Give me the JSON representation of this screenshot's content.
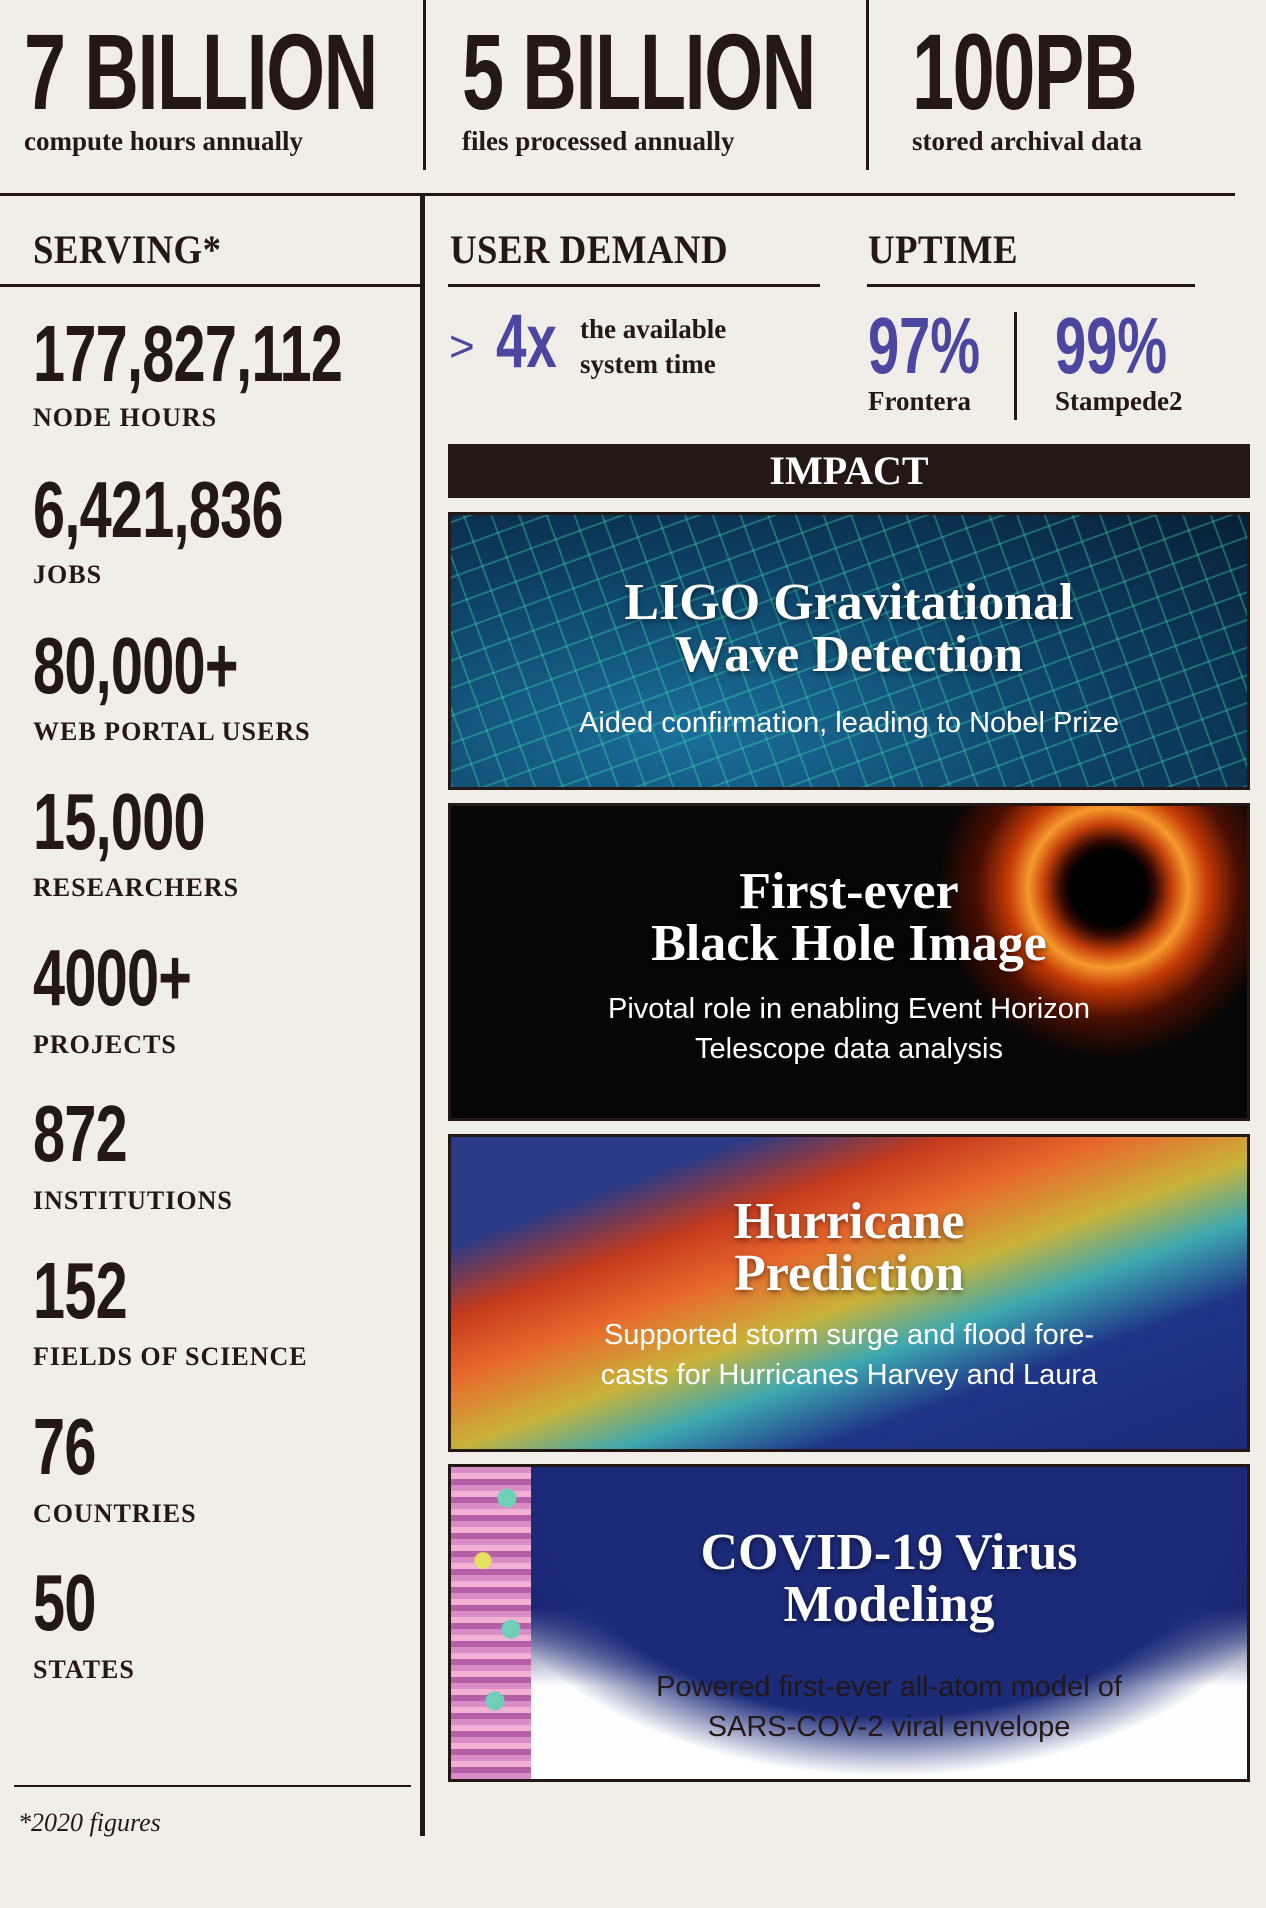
{
  "top_stats": [
    {
      "value": "7 BILLION",
      "label": "compute hours annually"
    },
    {
      "value": "5 BILLION",
      "label": "files processed annually"
    },
    {
      "value": "100PB",
      "label": "stored archival data"
    }
  ],
  "serving": {
    "heading": "SERVING*",
    "stats": [
      {
        "value": "177,827,112",
        "label": "NODE HOURS"
      },
      {
        "value": "6,421,836",
        "label": "JOBS"
      },
      {
        "value": "80,000+",
        "label": "WEB PORTAL USERS"
      },
      {
        "value": "15,000",
        "label": "RESEARCHERS"
      },
      {
        "value": "4000+",
        "label": "PROJECTS"
      },
      {
        "value": "872",
        "label": "INSTITUTIONS"
      },
      {
        "value": "152",
        "label": "FIELDS OF SCIENCE"
      },
      {
        "value": "76",
        "label": "COUNTRIES"
      },
      {
        "value": "50",
        "label": "STATES"
      }
    ],
    "footnote": "*2020 figures"
  },
  "user_demand": {
    "heading": "USER DEMAND",
    "prefix": ">",
    "value": "4x",
    "text_line1": "the available",
    "text_line2": "system time"
  },
  "uptime": {
    "heading": "UPTIME",
    "systems": [
      {
        "value": "97%",
        "name": "Frontera"
      },
      {
        "value": "99%",
        "name": "Stampede2"
      }
    ]
  },
  "impact": {
    "heading": "IMPACT",
    "panels": [
      {
        "title_line1": "LIGO Gravitational",
        "title_line2": "Wave Detection",
        "desc_line1": "Aided confirmation, leading to Nobel Prize",
        "desc_line2": ""
      },
      {
        "title_line1": "First-ever",
        "title_line2": "Black Hole Image",
        "desc_line1": "Pivotal role in enabling Event Horizon",
        "desc_line2": "Telescope data analysis"
      },
      {
        "title_line1": "Hurricane",
        "title_line2": "Prediction",
        "desc_line1": "Supported storm surge and flood fore-",
        "desc_line2": "casts for Hurricanes Harvey and Laura"
      },
      {
        "title_line1": "COVID-19 Virus",
        "title_line2": "Modeling",
        "desc_line1": "Powered first-ever all-atom model of",
        "desc_line2": "SARS-COV-2 viral envelope"
      }
    ]
  },
  "colors": {
    "accent": "#4b46a0",
    "ink": "#231815",
    "background": "#f1ede8"
  }
}
